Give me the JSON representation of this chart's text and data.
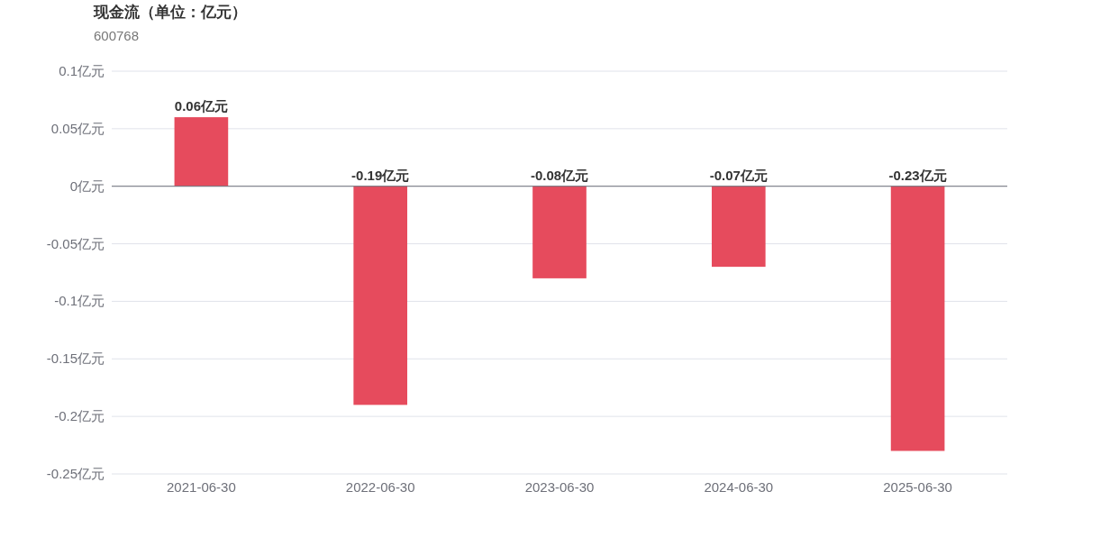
{
  "chart_data": {
    "type": "bar",
    "title": "现金流（单位：亿元）",
    "subtitle": "600768",
    "categories": [
      "2021-06-30",
      "2022-06-30",
      "2023-06-30",
      "2024-06-30",
      "2025-06-30"
    ],
    "values": [
      0.06,
      -0.19,
      -0.08,
      -0.07,
      -0.23
    ],
    "value_labels": [
      "0.06亿元",
      "-0.19亿元",
      "-0.08亿元",
      "-0.07亿元",
      "-0.23亿元"
    ],
    "color": "#e64b5d",
    "ylim": [
      -0.25,
      0.1
    ],
    "yticks": [
      {
        "value": 0.1,
        "label": "0.1亿元"
      },
      {
        "value": 0.05,
        "label": "0.05亿元"
      },
      {
        "value": 0,
        "label": "0亿元"
      },
      {
        "value": -0.05,
        "label": "-0.05亿元"
      },
      {
        "value": -0.1,
        "label": "-0.1亿元"
      },
      {
        "value": -0.15,
        "label": "-0.15亿元"
      },
      {
        "value": -0.2,
        "label": "-0.2亿元"
      },
      {
        "value": -0.25,
        "label": "-0.25亿元"
      }
    ],
    "grid": "y"
  }
}
